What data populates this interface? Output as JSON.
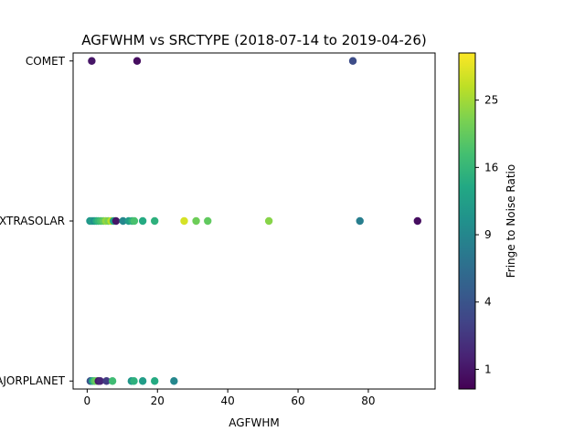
{
  "chart_data": {
    "type": "scatter",
    "title": "AGFWHM vs SRCTYPE (2018-07-14 to 2019-04-26)",
    "xlabel": "AGFWHM",
    "ylabel": "",
    "xlim": [
      -4,
      99
    ],
    "xticks": [
      0,
      20,
      40,
      60,
      80
    ],
    "y_categories": [
      "MAJORPLANET",
      "EXTRASOLAR",
      "COMET"
    ],
    "ylim": [
      -0.05,
      2.05
    ],
    "grid": false,
    "colorbar": {
      "label": "Fringe to Noise Ratio",
      "scale": "sqrt",
      "range": [
        0.5,
        32.5
      ],
      "ticks": [
        1,
        4,
        9,
        16,
        25
      ],
      "colormap": "viridis"
    },
    "points": [
      {
        "x": 1.3,
        "y": "COMET",
        "c": 1
      },
      {
        "x": 14.2,
        "y": "COMET",
        "c": 0.8
      },
      {
        "x": 75.6,
        "y": "COMET",
        "c": 3.5
      },
      {
        "x": 0.8,
        "y": "EXTRASOLAR",
        "c": 11
      },
      {
        "x": 1.4,
        "y": "EXTRASOLAR",
        "c": 12
      },
      {
        "x": 2.0,
        "y": "EXTRASOLAR",
        "c": 10
      },
      {
        "x": 2.6,
        "y": "EXTRASOLAR",
        "c": 14
      },
      {
        "x": 3.2,
        "y": "EXTRASOLAR",
        "c": 16
      },
      {
        "x": 3.9,
        "y": "EXTRASOLAR",
        "c": 18
      },
      {
        "x": 4.6,
        "y": "EXTRASOLAR",
        "c": 20
      },
      {
        "x": 5.3,
        "y": "EXTRASOLAR",
        "c": 24
      },
      {
        "x": 6.0,
        "y": "EXTRASOLAR",
        "c": 22
      },
      {
        "x": 6.8,
        "y": "EXTRASOLAR",
        "c": 27
      },
      {
        "x": 7.5,
        "y": "EXTRASOLAR",
        "c": 13
      },
      {
        "x": 8.2,
        "y": "EXTRASOLAR",
        "c": 1
      },
      {
        "x": 10.2,
        "y": "EXTRASOLAR",
        "c": 9
      },
      {
        "x": 11.8,
        "y": "EXTRASOLAR",
        "c": 12
      },
      {
        "x": 12.8,
        "y": "EXTRASOLAR",
        "c": 15
      },
      {
        "x": 13.4,
        "y": "EXTRASOLAR",
        "c": 18
      },
      {
        "x": 15.8,
        "y": "EXTRASOLAR",
        "c": 14
      },
      {
        "x": 19.2,
        "y": "EXTRASOLAR",
        "c": 15
      },
      {
        "x": 27.6,
        "y": "EXTRASOLAR",
        "c": 29
      },
      {
        "x": 31.0,
        "y": "EXTRASOLAR",
        "c": 21
      },
      {
        "x": 34.3,
        "y": "EXTRASOLAR",
        "c": 20
      },
      {
        "x": 51.7,
        "y": "EXTRASOLAR",
        "c": 23
      },
      {
        "x": 77.6,
        "y": "EXTRASOLAR",
        "c": 8
      },
      {
        "x": 94.0,
        "y": "EXTRASOLAR",
        "c": 0.8
      },
      {
        "x": 0.9,
        "y": "MAJORPLANET",
        "c": 4
      },
      {
        "x": 1.5,
        "y": "MAJORPLANET",
        "c": 13
      },
      {
        "x": 2.1,
        "y": "MAJORPLANET",
        "c": 19
      },
      {
        "x": 2.7,
        "y": "MAJORPLANET",
        "c": 21
      },
      {
        "x": 3.2,
        "y": "MAJORPLANET",
        "c": 1
      },
      {
        "x": 3.7,
        "y": "MAJORPLANET",
        "c": 1.5
      },
      {
        "x": 5.5,
        "y": "MAJORPLANET",
        "c": 2.5
      },
      {
        "x": 7.2,
        "y": "MAJORPLANET",
        "c": 17
      },
      {
        "x": 12.6,
        "y": "MAJORPLANET",
        "c": 11
      },
      {
        "x": 13.3,
        "y": "MAJORPLANET",
        "c": 15
      },
      {
        "x": 15.8,
        "y": "MAJORPLANET",
        "c": 12
      },
      {
        "x": 19.2,
        "y": "MAJORPLANET",
        "c": 14
      },
      {
        "x": 24.7,
        "y": "MAJORPLANET",
        "c": 9
      }
    ]
  }
}
